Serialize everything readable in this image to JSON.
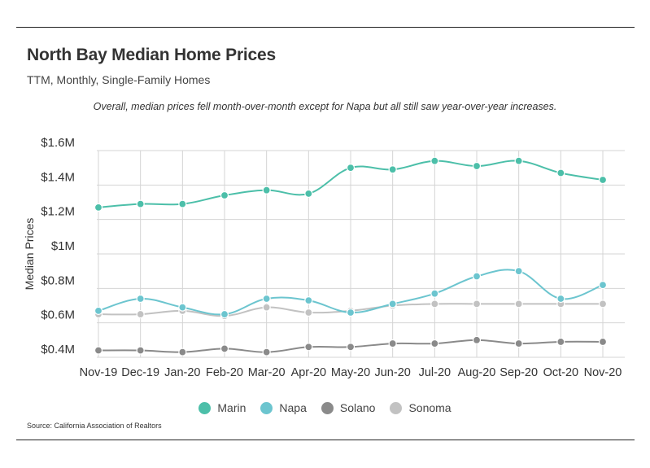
{
  "header": {
    "title": "North Bay Median Home Prices",
    "subtitle": "TTM, Monthly, Single-Family Homes",
    "note": "Overall, median prices fell month-over-month except for Napa but all still saw year-over-year increases."
  },
  "footer": {
    "source": "Source:  California Association of Realtors"
  },
  "chart_data": {
    "type": "line",
    "title": "North Bay Median Home Prices",
    "subtitle": "TTM, Monthly, Single-Family Homes",
    "xlabel": "",
    "ylabel": "Median Prices",
    "categories": [
      "Nov-19",
      "Dec-19",
      "Jan-20",
      "Feb-20",
      "Mar-20",
      "Apr-20",
      "May-20",
      "Jun-20",
      "Jul-20",
      "Aug-20",
      "Sep-20",
      "Oct-20",
      "Nov-20"
    ],
    "yticks": [
      0.4,
      0.6,
      0.8,
      1.0,
      1.2,
      1.4,
      1.6
    ],
    "ytick_labels": [
      "$0.4M",
      "$0.6M",
      "$0.8M",
      "$1M",
      "$1.2M",
      "$1.4M",
      "$1.6M"
    ],
    "ylim": [
      0.4,
      1.6
    ],
    "unit": "$M",
    "grid": "vertical-and-horizontal",
    "legend_position": "bottom",
    "series": [
      {
        "name": "Marin",
        "color": "#4cbfa9",
        "values": [
          1.27,
          1.29,
          1.29,
          1.34,
          1.37,
          1.35,
          1.5,
          1.49,
          1.54,
          1.51,
          1.54,
          1.47,
          1.43
        ]
      },
      {
        "name": "Napa",
        "color": "#6cc5cf",
        "values": [
          0.67,
          0.74,
          0.69,
          0.65,
          0.74,
          0.73,
          0.66,
          0.71,
          0.77,
          0.87,
          0.9,
          0.74,
          0.82
        ]
      },
      {
        "name": "Solano",
        "color": "#8a8a8a",
        "values": [
          0.44,
          0.44,
          0.43,
          0.45,
          0.43,
          0.46,
          0.46,
          0.48,
          0.48,
          0.5,
          0.48,
          0.49,
          0.49
        ]
      },
      {
        "name": "Sonoma",
        "color": "#c2c2c2",
        "values": [
          0.65,
          0.65,
          0.67,
          0.64,
          0.69,
          0.66,
          0.67,
          0.7,
          0.71,
          0.71,
          0.71,
          0.71,
          0.71
        ]
      }
    ]
  }
}
